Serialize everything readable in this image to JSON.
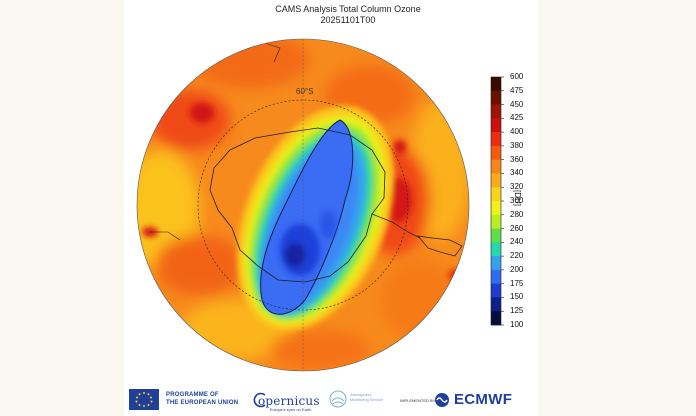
{
  "header": {
    "title": "CAMS Analysis  Total Column Ozone",
    "subtitle": "20251101T00"
  },
  "map": {
    "latitude_label": "60°S",
    "units": "[DU]"
  },
  "colorbar": {
    "levels": [
      "600",
      "475",
      "450",
      "425",
      "400",
      "380",
      "360",
      "340",
      "320",
      "300",
      "280",
      "260",
      "240",
      "220",
      "200",
      "175",
      "150",
      "125",
      "100"
    ],
    "colors": [
      "#3a0a00",
      "#6b1100",
      "#9c1500",
      "#cc1010",
      "#ee2a10",
      "#f25a10",
      "#f7861a",
      "#fbaa1c",
      "#fbd21c",
      "#f0f01c",
      "#b9ee22",
      "#5fe04a",
      "#24d8b0",
      "#34a0ee",
      "#2f6cf0",
      "#1d3cd0",
      "#10208a",
      "#080a40"
    ]
  },
  "footer": {
    "eu_line1": "PROGRAMME OF",
    "eu_line2": "THE EUROPEAN UNION",
    "copernicus": "opernicus",
    "copernicus_sub": "Europe's eyes on Earth",
    "atmosphere_line1": "Atmosphere",
    "atmosphere_line2": "Monitoring Service",
    "implemented_by": "IMPLEMENTED BY",
    "ecmwf": "ECMWF"
  }
}
